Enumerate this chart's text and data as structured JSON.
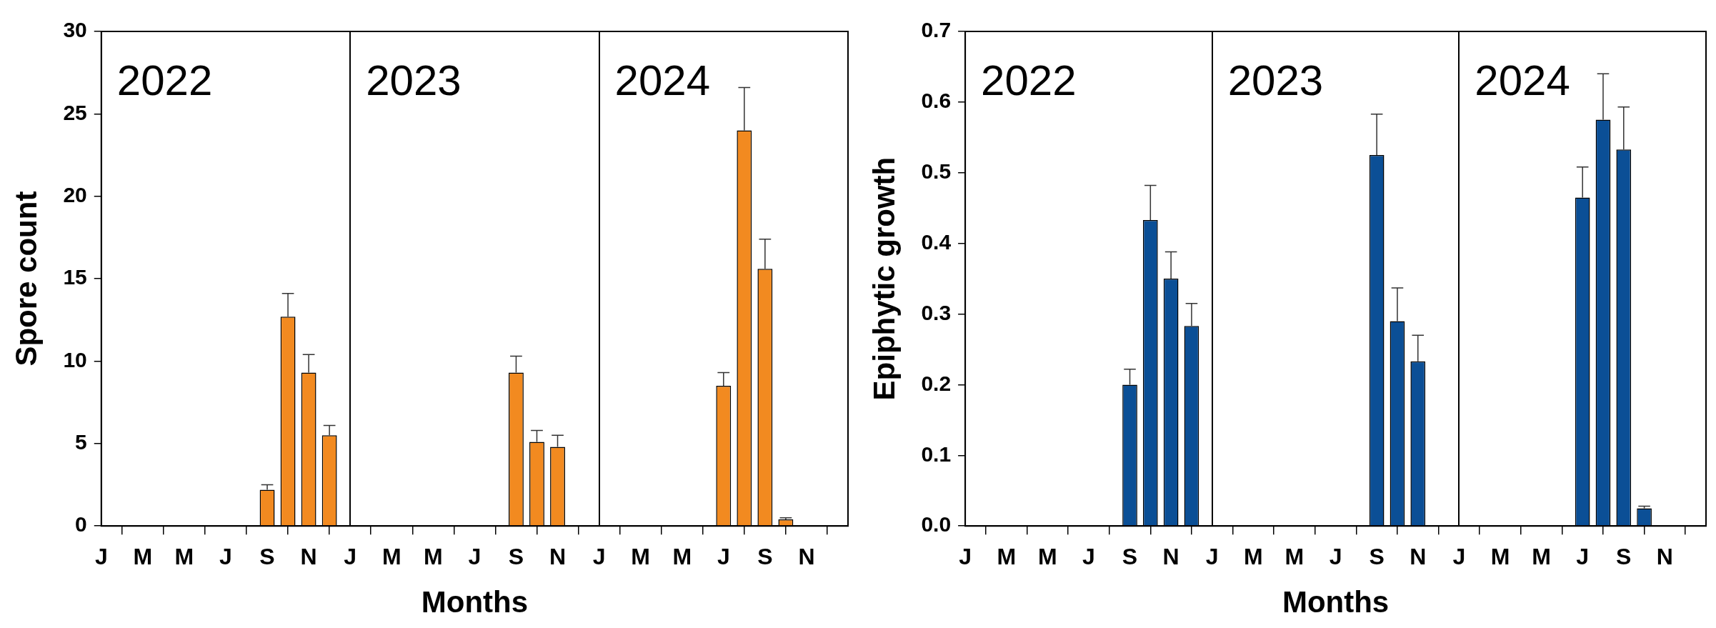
{
  "chart_data": [
    {
      "type": "bar",
      "xlabel": "Months",
      "ylabel": "Spore count",
      "categories": [
        "J",
        null,
        "M",
        null,
        "M",
        null,
        "J",
        null,
        "S",
        null,
        "N",
        null,
        "J",
        null,
        "M",
        null,
        "M",
        null,
        "J",
        null,
        "S",
        null,
        "N",
        null,
        "J",
        null,
        "M",
        null,
        "M",
        null,
        "J",
        null,
        "S",
        null,
        "N",
        null
      ],
      "values": [
        null,
        null,
        null,
        null,
        null,
        null,
        null,
        null,
        2.2,
        12.7,
        9.3,
        5.5,
        null,
        null,
        null,
        null,
        null,
        null,
        null,
        null,
        9.3,
        5.1,
        4.8,
        null,
        null,
        null,
        null,
        null,
        null,
        null,
        8.5,
        24.0,
        15.6,
        0.4,
        null,
        null
      ],
      "errors": [
        null,
        null,
        null,
        null,
        null,
        null,
        null,
        null,
        [
          2.2,
          2.5
        ],
        [
          12.7,
          14.1
        ],
        [
          9.3,
          10.4
        ],
        [
          5.5,
          6.1
        ],
        null,
        null,
        null,
        null,
        null,
        null,
        null,
        null,
        [
          9.3,
          10.3
        ],
        [
          5.1,
          5.8
        ],
        [
          4.8,
          5.5
        ],
        null,
        null,
        null,
        null,
        null,
        null,
        null,
        [
          8.5,
          9.3
        ],
        [
          24.0,
          26.6
        ],
        [
          15.6,
          17.4
        ],
        [
          0.4,
          0.5
        ],
        null,
        null
      ],
      "color": "#f28a20",
      "ylim": [
        0,
        30
      ],
      "yticks": [
        0,
        5,
        10,
        15,
        20,
        25,
        30
      ],
      "annotations": [
        "2022",
        "2023",
        "2024"
      ],
      "grid": false,
      "legend": false
    },
    {
      "type": "bar",
      "xlabel": "Months",
      "ylabel": "Epiphytic growth",
      "categories": [
        "J",
        null,
        "M",
        null,
        "M",
        null,
        "J",
        null,
        "S",
        null,
        "N",
        null,
        "J",
        null,
        "M",
        null,
        "M",
        null,
        "J",
        null,
        "S",
        null,
        "N",
        null,
        "J",
        null,
        "M",
        null,
        "M",
        null,
        "J",
        null,
        "S",
        null,
        "N",
        null
      ],
      "values": [
        null,
        null,
        null,
        null,
        null,
        null,
        null,
        null,
        0.2,
        0.433,
        0.35,
        0.283,
        null,
        null,
        null,
        null,
        null,
        null,
        null,
        null,
        0.525,
        0.29,
        0.233,
        null,
        null,
        null,
        null,
        null,
        null,
        null,
        0.465,
        0.575,
        0.533,
        0.025,
        null,
        null
      ],
      "errors": [
        null,
        null,
        null,
        null,
        null,
        null,
        null,
        null,
        [
          0.2,
          0.222
        ],
        [
          0.433,
          0.482
        ],
        [
          0.35,
          0.388
        ],
        [
          0.283,
          0.315
        ],
        null,
        null,
        null,
        null,
        null,
        null,
        null,
        null,
        [
          0.525,
          0.583
        ],
        [
          0.29,
          0.337
        ],
        [
          0.233,
          0.27
        ],
        null,
        null,
        null,
        null,
        null,
        null,
        null,
        [
          0.465,
          0.508
        ],
        [
          0.575,
          0.64
        ],
        [
          0.533,
          0.593
        ],
        [
          0.025,
          0.028
        ],
        null,
        null
      ],
      "color": "#0b4f96",
      "ylim": [
        0,
        0.7
      ],
      "yticks": [
        {
          "value": 0,
          "label": "0.0"
        },
        {
          "value": 0.1,
          "label": "0.1"
        },
        {
          "value": 0.2,
          "label": "0.2"
        },
        {
          "value": 0.3,
          "label": "0.3"
        },
        {
          "value": 0.4,
          "label": "0.4"
        },
        {
          "value": 0.5,
          "label": "0.5"
        },
        {
          "value": 0.6,
          "label": "0.6"
        },
        {
          "value": 0.7,
          "label": "0.7"
        }
      ],
      "annotations": [
        "2022",
        "2023",
        "2024"
      ],
      "grid": false,
      "legend": false
    }
  ]
}
